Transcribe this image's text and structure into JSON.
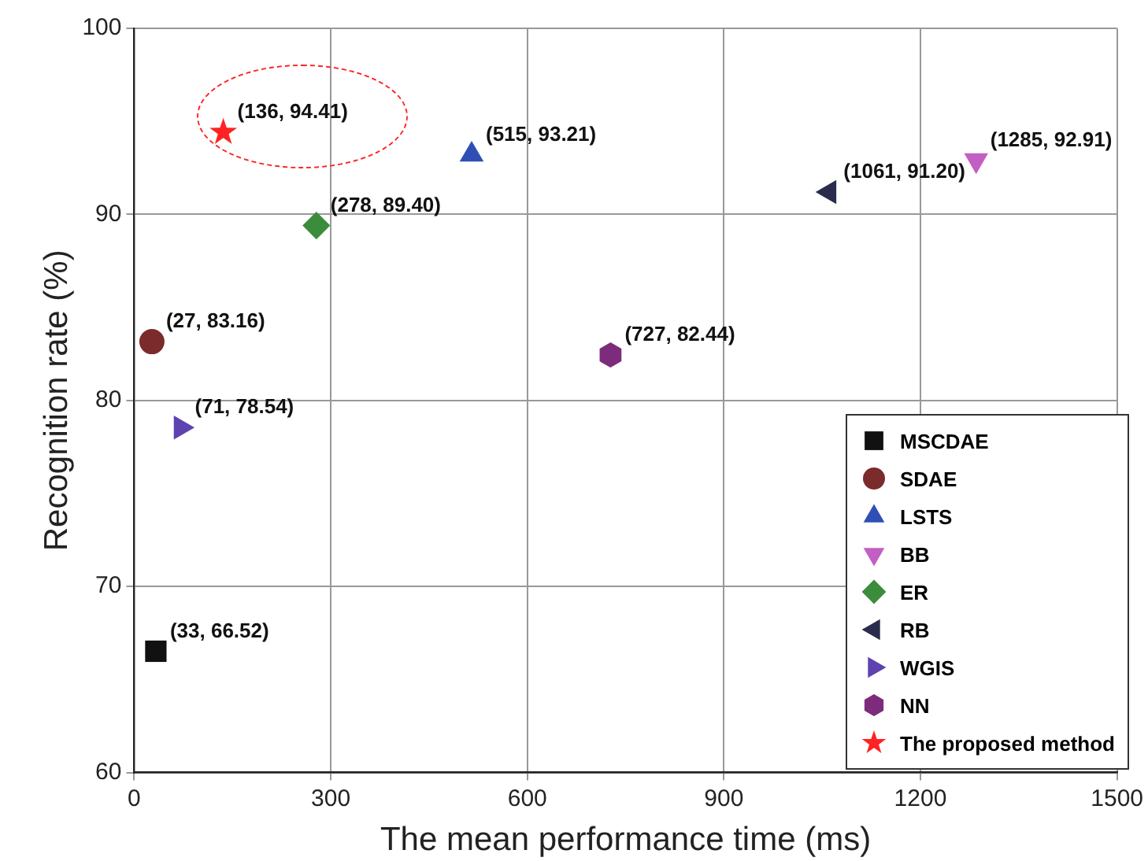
{
  "chart_data": {
    "type": "scatter",
    "xlabel": "The mean performance time (ms)",
    "ylabel": "Recognition rate (%)",
    "xlim": [
      0,
      1500
    ],
    "xticks": [
      0,
      300,
      600,
      900,
      1200,
      1500
    ],
    "ylim": [
      60,
      100
    ],
    "yticks": [
      60,
      70,
      80,
      90,
      100
    ],
    "grid": true,
    "legend": "bottom right",
    "series": [
      {
        "name": "MSCDAE",
        "color": "#111111",
        "marker": "square",
        "x": [
          33
        ],
        "values": [
          66.52
        ],
        "value_labels": [
          "(33, 66.52)"
        ]
      },
      {
        "name": "SDAE",
        "color": "#7b2b2b",
        "marker": "circle",
        "x": [
          27
        ],
        "values": [
          83.16
        ],
        "value_labels": [
          "(27, 83.16)"
        ]
      },
      {
        "name": "LSTS",
        "color": "#2f4fb5",
        "marker": "triangle",
        "x": [
          515
        ],
        "values": [
          93.21
        ],
        "value_labels": [
          "(515, 93.21)"
        ]
      },
      {
        "name": "BB",
        "color": "#c25fc2",
        "marker": "triangle-down",
        "x": [
          1285
        ],
        "values": [
          92.91
        ],
        "value_labels": [
          "(1285, 92.91)"
        ]
      },
      {
        "name": "ER",
        "color": "#3b8d3b",
        "marker": "diamond",
        "x": [
          278
        ],
        "values": [
          89.4
        ],
        "value_labels": [
          "(278, 89.40)"
        ]
      },
      {
        "name": "RB",
        "color": "#2b2b4d",
        "marker": "triangle-left",
        "x": [
          1061
        ],
        "values": [
          91.2
        ],
        "value_labels": [
          "(1061, 91.20)"
        ]
      },
      {
        "name": "WGIS",
        "color": "#5d42b0",
        "marker": "triangle-right",
        "x": [
          71
        ],
        "values": [
          78.54
        ],
        "value_labels": [
          "(71, 78.54)"
        ]
      },
      {
        "name": "NN",
        "color": "#7d2b7d",
        "x": [
          727
        ],
        "values": [
          82.44
        ],
        "value_labels": [
          "(727, 82.44)"
        ]
      },
      {
        "name": "The proposed method",
        "color": "#ff2222",
        "marker": "star",
        "x": [
          136
        ],
        "values": [
          94.41
        ],
        "value_labels": [
          "(136, 94.41)"
        ]
      }
    ]
  }
}
